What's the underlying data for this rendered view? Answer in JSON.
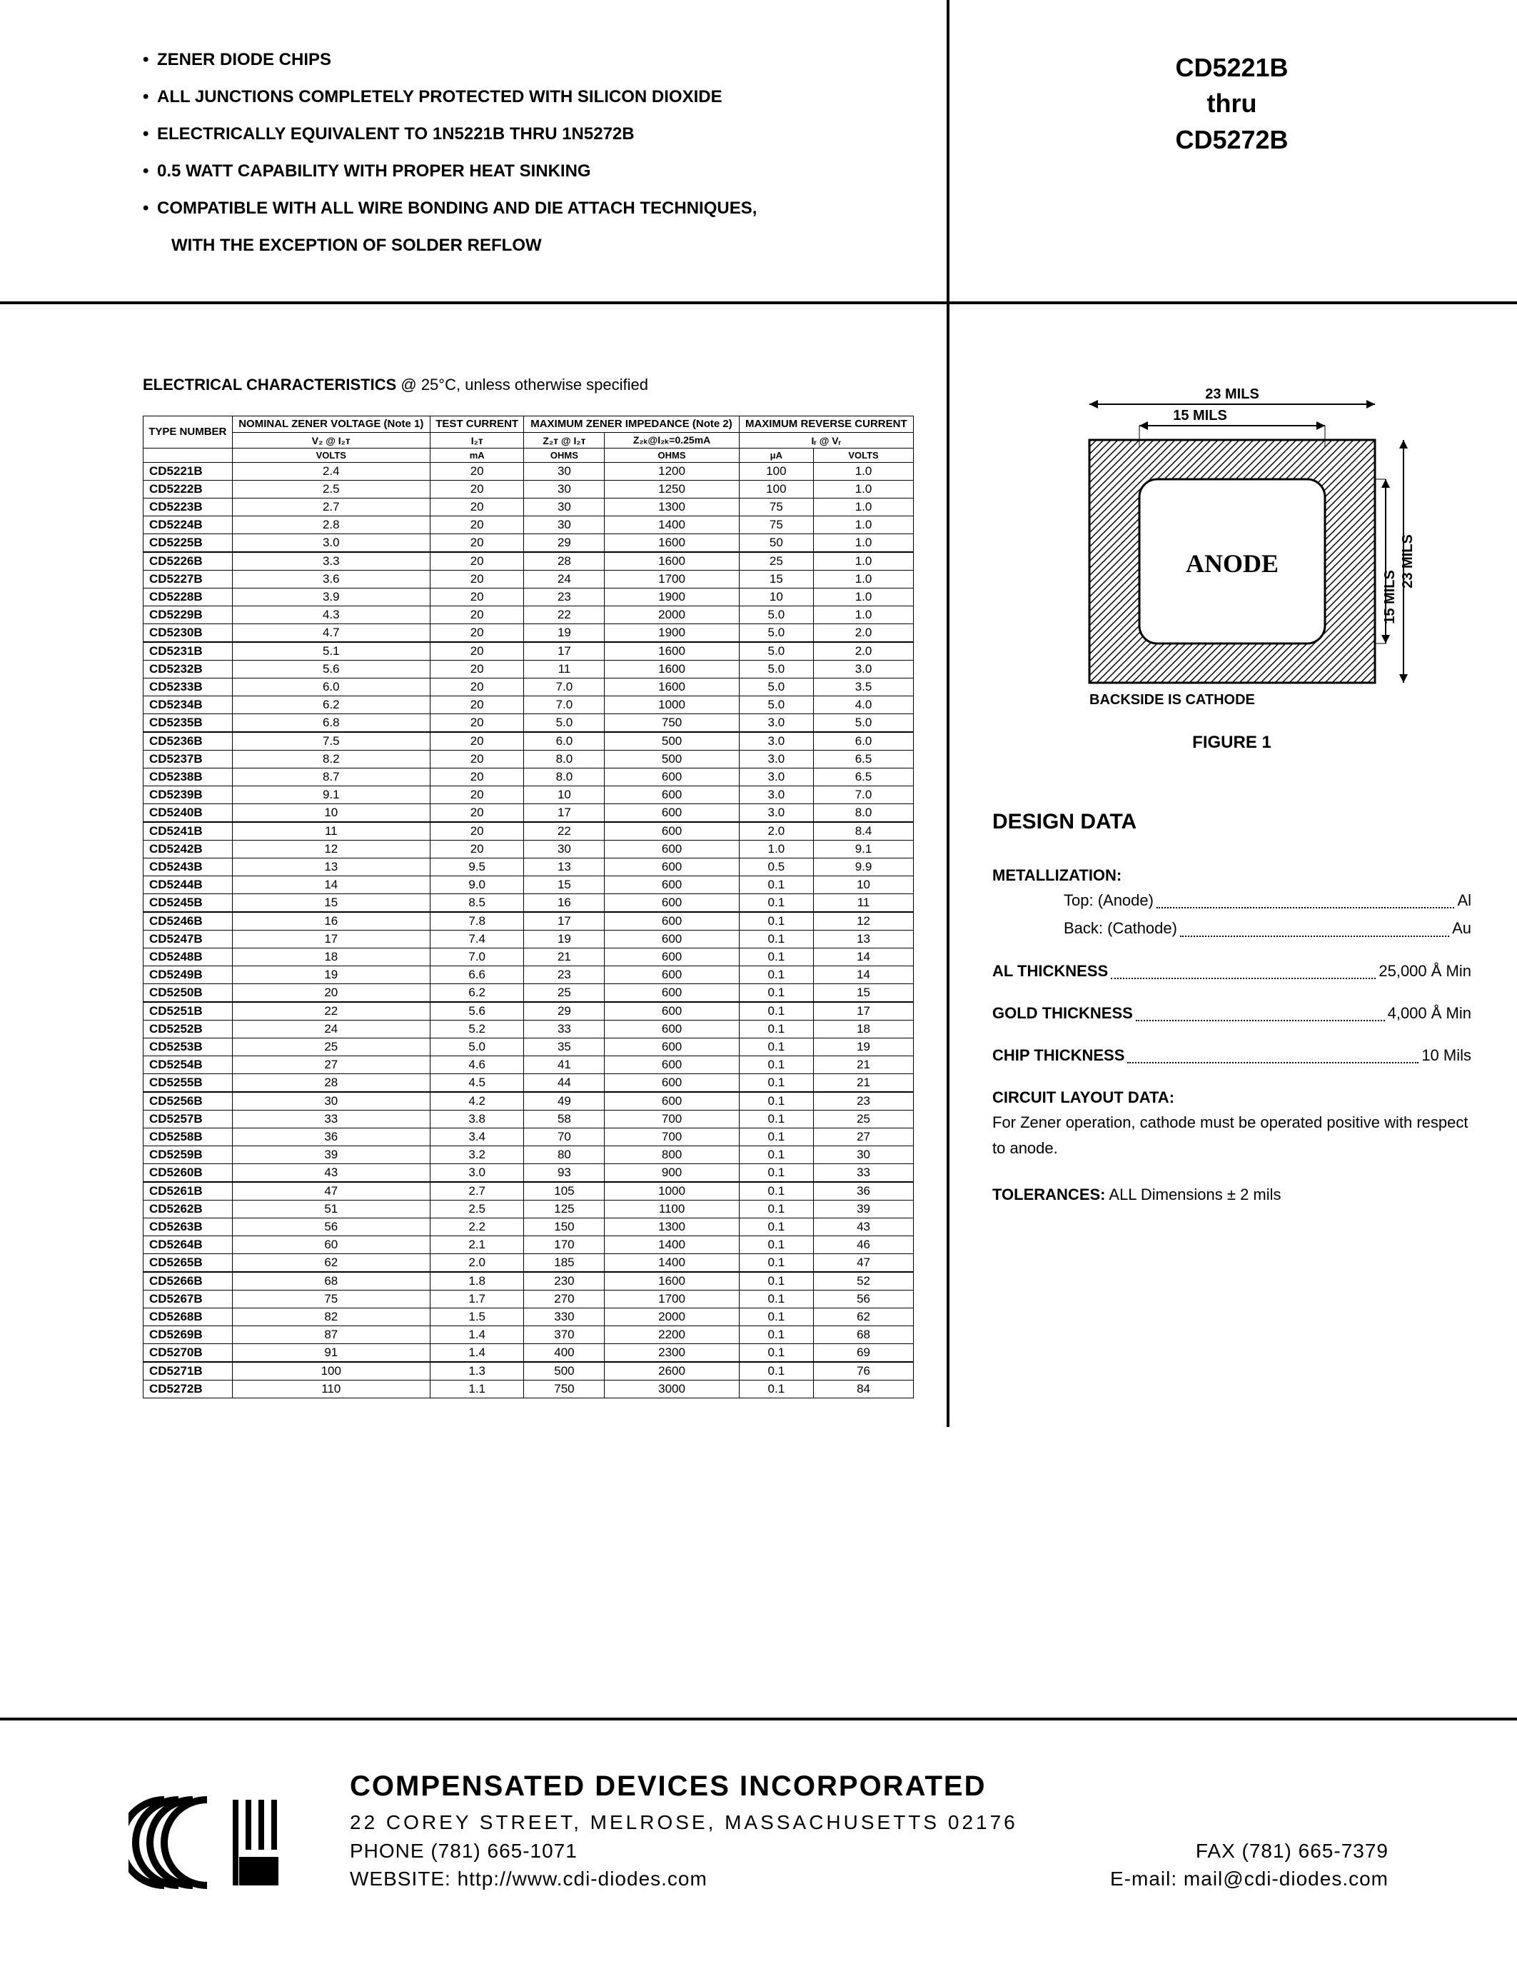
{
  "header": {
    "bullets": [
      "ZENER DIODE CHIPS",
      "ALL JUNCTIONS COMPLETELY PROTECTED WITH SILICON DIOXIDE",
      "ELECTRICALLY EQUIVALENT TO 1N5221B THRU 1N5272B",
      "0.5 WATT CAPABILITY WITH PROPER HEAT SINKING",
      "COMPATIBLE WITH ALL WIRE BONDING AND DIE ATTACH TECHNIQUES,"
    ],
    "bullet_cont": "WITH THE EXCEPTION OF SOLDER REFLOW",
    "part_top": "CD5221B",
    "part_mid": "thru",
    "part_bot": "CD5272B"
  },
  "elec": {
    "title_bold": "ELECTRICAL CHARACTERISTICS",
    "title_rest": " @ 25°C, unless otherwise specified",
    "col_headers": {
      "type": "TYPE NUMBER",
      "voltage": "NOMINAL ZENER VOLTAGE (Note 1)",
      "current": "TEST CURRENT",
      "impedance": "MAXIMUM ZENER IMPEDANCE (Note 2)",
      "reverse": "MAXIMUM REVERSE CURRENT"
    },
    "sub_headers": {
      "vz": "V₂ @ I₂ᴛ",
      "izt": "I₂ᴛ",
      "zzt": "Z₂ᴛ @ I₂ᴛ",
      "zzk": "Z₂ₖ@I₂ₖ=0.25mA",
      "ir": "Iᵣ @ Vᵣ"
    },
    "units": {
      "volts": "VOLTS",
      "ma": "mA",
      "ohms": "OHMS",
      "ua": "μA"
    },
    "groups": [
      [
        [
          "CD5221B",
          "2.4",
          "20",
          "30",
          "1200",
          "100",
          "1.0"
        ],
        [
          "CD5222B",
          "2.5",
          "20",
          "30",
          "1250",
          "100",
          "1.0"
        ],
        [
          "CD5223B",
          "2.7",
          "20",
          "30",
          "1300",
          "75",
          "1.0"
        ],
        [
          "CD5224B",
          "2.8",
          "20",
          "30",
          "1400",
          "75",
          "1.0"
        ],
        [
          "CD5225B",
          "3.0",
          "20",
          "29",
          "1600",
          "50",
          "1.0"
        ]
      ],
      [
        [
          "CD5226B",
          "3.3",
          "20",
          "28",
          "1600",
          "25",
          "1.0"
        ],
        [
          "CD5227B",
          "3.6",
          "20",
          "24",
          "1700",
          "15",
          "1.0"
        ],
        [
          "CD5228B",
          "3.9",
          "20",
          "23",
          "1900",
          "10",
          "1.0"
        ],
        [
          "CD5229B",
          "4.3",
          "20",
          "22",
          "2000",
          "5.0",
          "1.0"
        ],
        [
          "CD5230B",
          "4.7",
          "20",
          "19",
          "1900",
          "5.0",
          "2.0"
        ]
      ],
      [
        [
          "CD5231B",
          "5.1",
          "20",
          "17",
          "1600",
          "5.0",
          "2.0"
        ],
        [
          "CD5232B",
          "5.6",
          "20",
          "11",
          "1600",
          "5.0",
          "3.0"
        ],
        [
          "CD5233B",
          "6.0",
          "20",
          "7.0",
          "1600",
          "5.0",
          "3.5"
        ],
        [
          "CD5234B",
          "6.2",
          "20",
          "7.0",
          "1000",
          "5.0",
          "4.0"
        ],
        [
          "CD5235B",
          "6.8",
          "20",
          "5.0",
          "750",
          "3.0",
          "5.0"
        ]
      ],
      [
        [
          "CD5236B",
          "7.5",
          "20",
          "6.0",
          "500",
          "3.0",
          "6.0"
        ],
        [
          "CD5237B",
          "8.2",
          "20",
          "8.0",
          "500",
          "3.0",
          "6.5"
        ],
        [
          "CD5238B",
          "8.7",
          "20",
          "8.0",
          "600",
          "3.0",
          "6.5"
        ],
        [
          "CD5239B",
          "9.1",
          "20",
          "10",
          "600",
          "3.0",
          "7.0"
        ],
        [
          "CD5240B",
          "10",
          "20",
          "17",
          "600",
          "3.0",
          "8.0"
        ]
      ],
      [
        [
          "CD5241B",
          "11",
          "20",
          "22",
          "600",
          "2.0",
          "8.4"
        ],
        [
          "CD5242B",
          "12",
          "20",
          "30",
          "600",
          "1.0",
          "9.1"
        ],
        [
          "CD5243B",
          "13",
          "9.5",
          "13",
          "600",
          "0.5",
          "9.9"
        ],
        [
          "CD5244B",
          "14",
          "9.0",
          "15",
          "600",
          "0.1",
          "10"
        ],
        [
          "CD5245B",
          "15",
          "8.5",
          "16",
          "600",
          "0.1",
          "11"
        ]
      ],
      [
        [
          "CD5246B",
          "16",
          "7.8",
          "17",
          "600",
          "0.1",
          "12"
        ],
        [
          "CD5247B",
          "17",
          "7.4",
          "19",
          "600",
          "0.1",
          "13"
        ],
        [
          "CD5248B",
          "18",
          "7.0",
          "21",
          "600",
          "0.1",
          "14"
        ],
        [
          "CD5249B",
          "19",
          "6.6",
          "23",
          "600",
          "0.1",
          "14"
        ],
        [
          "CD5250B",
          "20",
          "6.2",
          "25",
          "600",
          "0.1",
          "15"
        ]
      ],
      [
        [
          "CD5251B",
          "22",
          "5.6",
          "29",
          "600",
          "0.1",
          "17"
        ],
        [
          "CD5252B",
          "24",
          "5.2",
          "33",
          "600",
          "0.1",
          "18"
        ],
        [
          "CD5253B",
          "25",
          "5.0",
          "35",
          "600",
          "0.1",
          "19"
        ],
        [
          "CD5254B",
          "27",
          "4.6",
          "41",
          "600",
          "0.1",
          "21"
        ],
        [
          "CD5255B",
          "28",
          "4.5",
          "44",
          "600",
          "0.1",
          "21"
        ]
      ],
      [
        [
          "CD5256B",
          "30",
          "4.2",
          "49",
          "600",
          "0.1",
          "23"
        ],
        [
          "CD5257B",
          "33",
          "3.8",
          "58",
          "700",
          "0.1",
          "25"
        ],
        [
          "CD5258B",
          "36",
          "3.4",
          "70",
          "700",
          "0.1",
          "27"
        ],
        [
          "CD5259B",
          "39",
          "3.2",
          "80",
          "800",
          "0.1",
          "30"
        ],
        [
          "CD5260B",
          "43",
          "3.0",
          "93",
          "900",
          "0.1",
          "33"
        ]
      ],
      [
        [
          "CD5261B",
          "47",
          "2.7",
          "105",
          "1000",
          "0.1",
          "36"
        ],
        [
          "CD5262B",
          "51",
          "2.5",
          "125",
          "1100",
          "0.1",
          "39"
        ],
        [
          "CD5263B",
          "56",
          "2.2",
          "150",
          "1300",
          "0.1",
          "43"
        ],
        [
          "CD5264B",
          "60",
          "2.1",
          "170",
          "1400",
          "0.1",
          "46"
        ],
        [
          "CD5265B",
          "62",
          "2.0",
          "185",
          "1400",
          "0.1",
          "47"
        ]
      ],
      [
        [
          "CD5266B",
          "68",
          "1.8",
          "230",
          "1600",
          "0.1",
          "52"
        ],
        [
          "CD5267B",
          "75",
          "1.7",
          "270",
          "1700",
          "0.1",
          "56"
        ],
        [
          "CD5268B",
          "82",
          "1.5",
          "330",
          "2000",
          "0.1",
          "62"
        ],
        [
          "CD5269B",
          "87",
          "1.4",
          "370",
          "2200",
          "0.1",
          "68"
        ],
        [
          "CD5270B",
          "91",
          "1.4",
          "400",
          "2300",
          "0.1",
          "69"
        ]
      ],
      [
        [
          "CD5271B",
          "100",
          "1.3",
          "500",
          "2600",
          "0.1",
          "76"
        ],
        [
          "CD5272B",
          "110",
          "1.1",
          "750",
          "3000",
          "0.1",
          "84"
        ]
      ]
    ]
  },
  "figure": {
    "dim_outer": "23 MILS",
    "dim_inner": "15 MILS",
    "anode": "ANODE",
    "backside": "BACKSIDE IS CATHODE",
    "label": "FIGURE 1"
  },
  "design": {
    "header": "DESIGN DATA",
    "metallization_label": "METALLIZATION:",
    "top_label": "Top: (Anode)",
    "top_val": "Al",
    "back_label": "Back: (Cathode)",
    "back_val": "Au",
    "al_label": "AL THICKNESS",
    "al_val": "25,000 Å Min",
    "gold_label": "GOLD THICKNESS",
    "gold_val": "4,000 Å Min",
    "chip_label": "CHIP THICKNESS",
    "chip_val": "10 Mils",
    "circuit_label": "CIRCUIT LAYOUT DATA:",
    "circuit_text": "For Zener operation, cathode must be operated positive with respect to anode.",
    "tol_label": "TOLERANCES:",
    "tol_text": " ALL Dimensions ± 2 mils"
  },
  "footer": {
    "company": "COMPENSATED DEVICES INCORPORATED",
    "address": "22 COREY STREET, MELROSE, MASSACHUSETTS 02176",
    "phone": "PHONE (781) 665-1071",
    "fax": "FAX (781) 665-7379",
    "website": "WEBSITE:  http://www.cdi-diodes.com",
    "email": "E-mail: mail@cdi-diodes.com"
  }
}
